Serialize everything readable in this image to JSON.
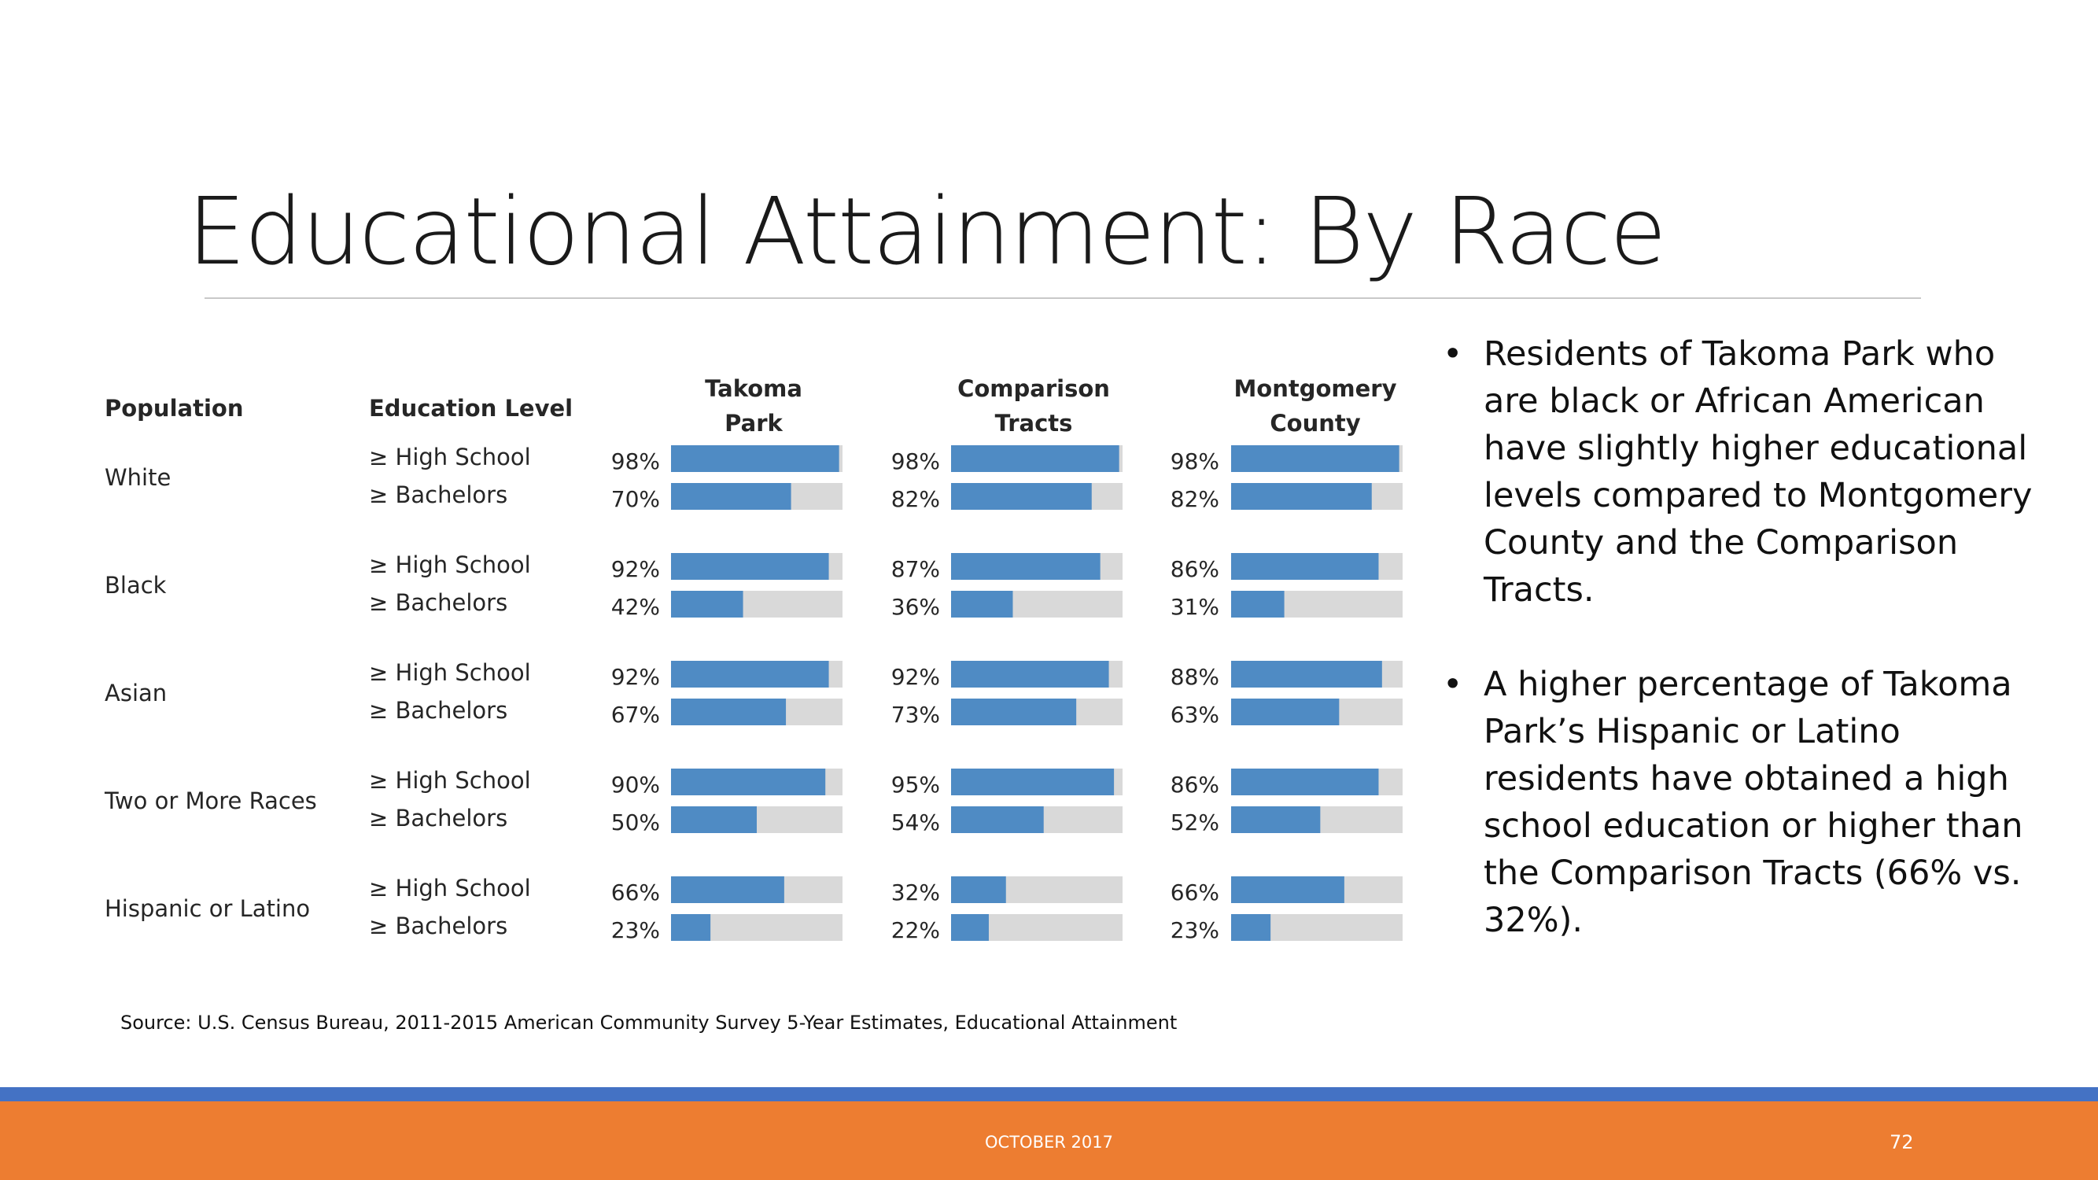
{
  "slide": {
    "title": "Educational Attainment: By Race",
    "bullets": [
      "Residents of Takoma Park who are black or African American have slightly higher educational levels compared to Montgomery County and the Comparison Tracts.",
      "A higher percentage of Takoma Park’s Hispanic or Latino residents have obtained a high school education or higher than the Comparison Tracts (66% vs. 32%)."
    ],
    "bullet_glyph": "•",
    "source": "Source: U.S. Census Bureau, 2011-2015 American Community Survey 5-Year Estimates, Educational Attainment",
    "footer_date": "OCTOBER 2017",
    "page_number": "72"
  },
  "chart_data": {
    "type": "bar",
    "orientation": "horizontal",
    "headers": {
      "population": "Population",
      "education_level": "Education Level",
      "columns": [
        [
          "Takoma",
          "Park"
        ],
        [
          "Comparison",
          "Tracts"
        ],
        [
          "Montgomery",
          "County"
        ]
      ]
    },
    "levels": [
      "≥ High School",
      "≥ Bachelors"
    ],
    "groups": [
      {
        "name": "White",
        "values": [
          [
            98,
            70
          ],
          [
            98,
            82
          ],
          [
            98,
            82
          ]
        ]
      },
      {
        "name": "Black",
        "values": [
          [
            92,
            42
          ],
          [
            87,
            36
          ],
          [
            86,
            31
          ]
        ]
      },
      {
        "name": "Asian",
        "values": [
          [
            92,
            67
          ],
          [
            92,
            73
          ],
          [
            88,
            63
          ]
        ]
      },
      {
        "name": "Two or More Races",
        "values": [
          [
            90,
            50
          ],
          [
            95,
            54
          ],
          [
            86,
            52
          ]
        ]
      },
      {
        "name": "Hispanic or Latino",
        "values": [
          [
            66,
            23
          ],
          [
            32,
            22
          ],
          [
            66,
            23
          ]
        ]
      }
    ],
    "value_suffix": "%",
    "xlim": [
      0,
      100
    ],
    "colors": {
      "bar": "#4f8bc4",
      "track": "#d9d9d9",
      "text": "#262626"
    }
  }
}
